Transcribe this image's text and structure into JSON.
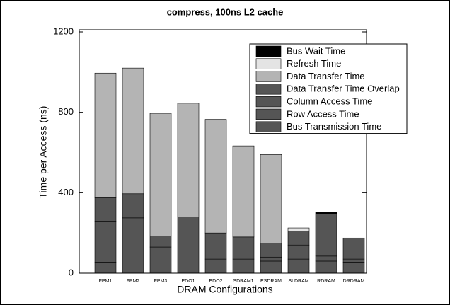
{
  "chart_data": {
    "type": "stacked-bar",
    "title": "compress, 100ns L2 cache",
    "x_label": "DRAM Configurations",
    "y_label": "Time per Access (ns)",
    "categories": [
      "FPM1",
      "FPM2",
      "FPM3",
      "EDO1",
      "EDO2",
      "SDRAM1",
      "ESDRAM",
      "SLDRAM",
      "RDRAM",
      "DRDRAM"
    ],
    "series": [
      {
        "name": "Bus Transmission Time",
        "color": "#555555",
        "values": [
          40,
          40,
          40,
          40,
          40,
          40,
          40,
          40,
          40,
          40
        ]
      },
      {
        "name": "Row Access Time",
        "color": "#555555",
        "values": [
          15,
          35,
          60,
          35,
          30,
          30,
          20,
          30,
          20,
          15
        ]
      },
      {
        "name": "Column Access Time",
        "color": "#555555",
        "values": [
          200,
          200,
          30,
          85,
          30,
          30,
          20,
          70,
          25,
          15
        ]
      },
      {
        "name": "Data Transfer Time Overlap",
        "color": "#555555",
        "values": [
          120,
          120,
          55,
          120,
          100,
          80,
          70,
          70,
          210,
          105
        ]
      },
      {
        "name": "Data Transfer Time",
        "color": "#b4b4b4",
        "values": [
          620,
          625,
          610,
          565,
          565,
          450,
          440,
          0,
          0,
          0
        ]
      },
      {
        "name": "Refresh Time",
        "color": "#e4e4e4",
        "values": [
          0,
          0,
          0,
          0,
          0,
          0,
          0,
          15,
          0,
          0
        ]
      },
      {
        "name": "Bus Wait Time",
        "color": "#000000",
        "values": [
          0,
          0,
          0,
          0,
          0,
          3,
          0,
          0,
          8,
          0
        ]
      }
    ],
    "ylim": [
      0,
      1200
    ],
    "yticks": [
      0,
      400,
      800,
      1200
    ],
    "grid": false,
    "legend": "upper right"
  }
}
